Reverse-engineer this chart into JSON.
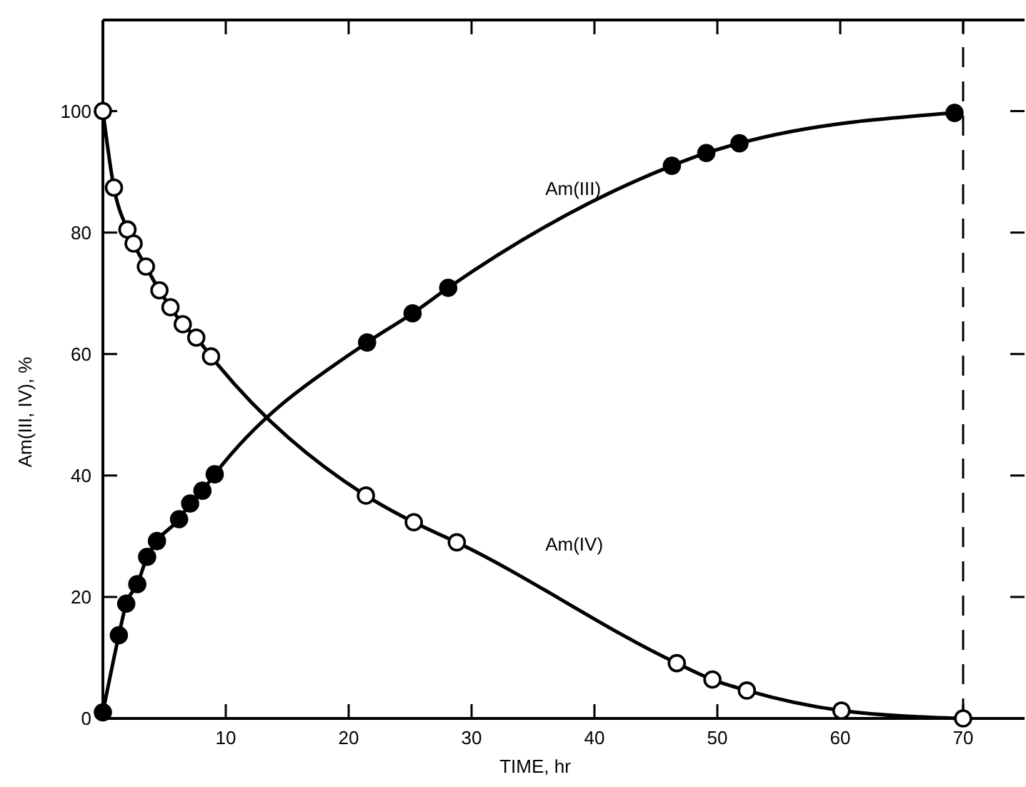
{
  "chart_data": {
    "type": "line",
    "xlabel": "TIME, hr",
    "ylabel": "Am(III, IV), %",
    "xlim": [
      0,
      75
    ],
    "ylim": [
      0,
      115
    ],
    "xticks": [
      10,
      20,
      30,
      40,
      50,
      60,
      70
    ],
    "yticks": [
      0,
      20,
      40,
      60,
      80,
      100
    ],
    "marker": "circle",
    "line_style": "solid",
    "grid": false,
    "ref_lines": [
      {
        "axis": "x",
        "value": 70,
        "line_style": "dashed",
        "color": "#000000"
      }
    ],
    "series": [
      {
        "name": "Am(III)",
        "color": "#000000",
        "x": [
          0,
          1.3,
          1.9,
          2.8,
          3.6,
          4.4,
          6.2,
          7.1,
          8.1,
          9.1,
          21.5,
          25.2,
          28.1,
          46.3,
          49.1,
          51.8,
          69.3
        ],
        "values": [
          1,
          13.7,
          18.9,
          22.1,
          26.6,
          29.2,
          32.8,
          35.4,
          37.5,
          40.2,
          61.9,
          66.7,
          70.9,
          91.0,
          93.1,
          94.7,
          99.7
        ]
      },
      {
        "name": "Am(IV)",
        "color": "#000000",
        "x": [
          0,
          0.9,
          2.0,
          2.5,
          3.5,
          4.6,
          5.5,
          6.5,
          7.6,
          8.8,
          21.4,
          25.3,
          28.8,
          46.7,
          49.6,
          52.4,
          60.1,
          70
        ],
        "values": [
          100,
          87.4,
          80.5,
          78.2,
          74.4,
          70.5,
          67.7,
          64.9,
          62.7,
          59.6,
          36.7,
          32.3,
          29.0,
          9.1,
          6.4,
          4.6,
          1.3,
          0
        ]
      }
    ]
  }
}
